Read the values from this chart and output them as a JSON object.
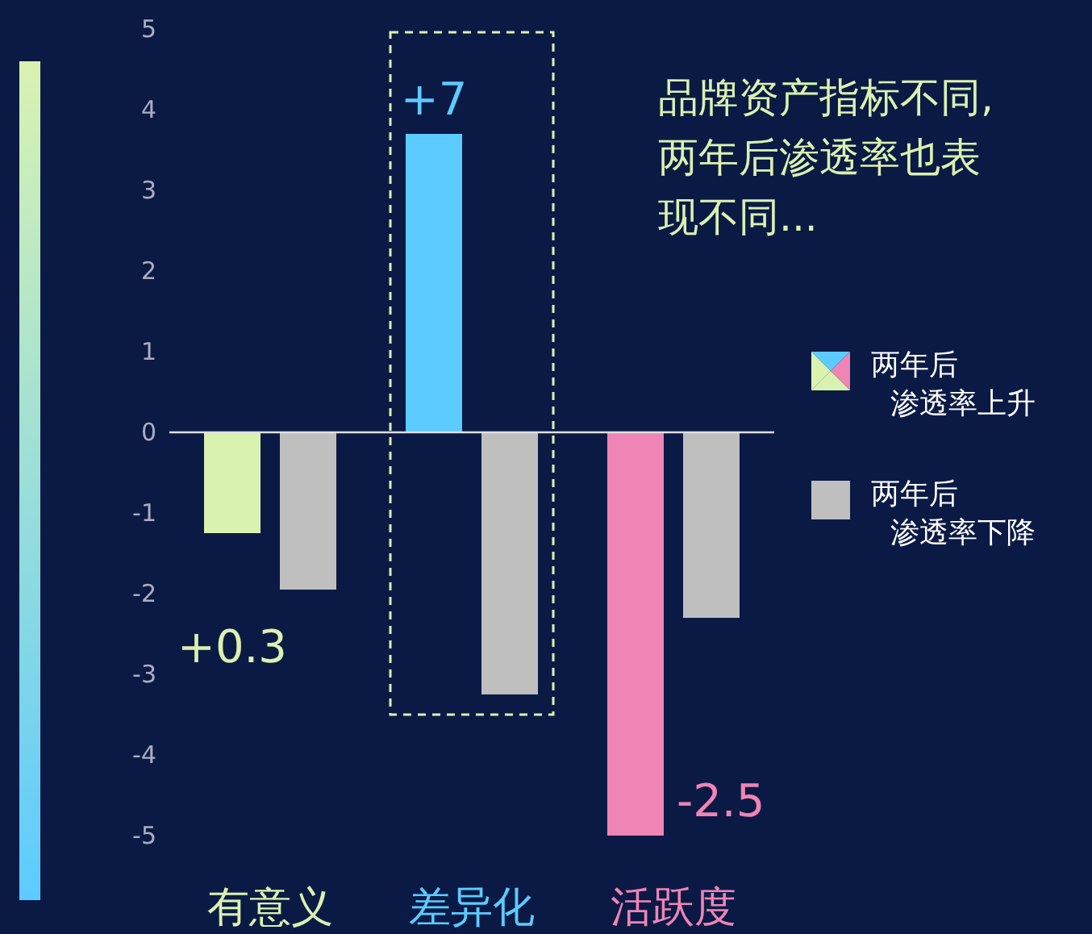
{
  "chart_data": {
    "type": "bar",
    "title": "品牌资产指标不同,两年后渗透率也表现不同...",
    "categories": [
      "有意义",
      "差异化",
      "活跃度"
    ],
    "series": [
      {
        "name": "两年后渗透率上升",
        "colors": [
          "#d9f2b0",
          "#5ccbff",
          "#ee85b5"
        ],
        "values": [
          -1.25,
          3.7,
          -5.0
        ]
      },
      {
        "name": "两年后渗透率下降",
        "color": "#bfbfbf",
        "values": [
          -1.95,
          -3.25,
          -2.3
        ]
      }
    ],
    "ylim": [
      -5,
      5
    ],
    "yticks": [
      -5,
      -4,
      -3,
      -2,
      -1,
      0,
      1,
      2,
      3,
      4,
      5
    ],
    "legend": "right",
    "annotations": [
      "+0.3",
      "+7",
      "-2.5"
    ]
  }
}
